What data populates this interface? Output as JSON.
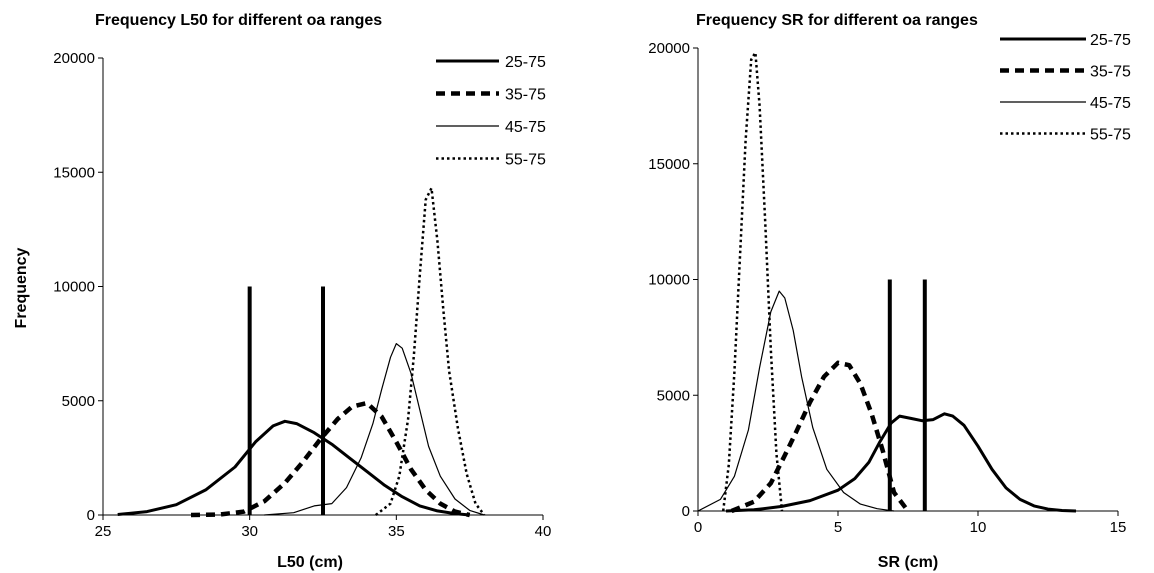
{
  "chart_data": [
    {
      "type": "line",
      "title": "Frequency L50 for different oa ranges",
      "xlabel": "L50 (cm)",
      "ylabel": "Frequency",
      "xlim": [
        25,
        40
      ],
      "ylim": [
        0,
        20000
      ],
      "xticks": [
        25,
        30,
        35,
        40
      ],
      "yticks": [
        0,
        5000,
        10000,
        15000,
        20000
      ],
      "legend_position": "top-right",
      "series": [
        {
          "name": "25-75",
          "style": "thick-solid",
          "x": [
            25.5,
            26.5,
            27.5,
            28.5,
            29.5,
            30.2,
            30.8,
            31.2,
            31.6,
            32.2,
            32.8,
            33.4,
            34,
            34.6,
            35.2,
            35.8,
            36.4,
            37,
            37.5
          ],
          "y": [
            20,
            150,
            450,
            1100,
            2100,
            3200,
            3900,
            4100,
            4000,
            3600,
            3100,
            2500,
            1900,
            1300,
            800,
            400,
            180,
            60,
            0
          ]
        },
        {
          "name": "35-75",
          "style": "thick-dashed",
          "x": [
            28,
            29,
            29.8,
            30.5,
            31.2,
            31.8,
            32.4,
            33,
            33.5,
            34,
            34.5,
            35,
            35.5,
            36,
            36.5,
            37,
            37.5
          ],
          "y": [
            0,
            20,
            150,
            600,
            1400,
            2300,
            3300,
            4200,
            4750,
            4900,
            4300,
            3200,
            2000,
            1100,
            500,
            150,
            0
          ]
        },
        {
          "name": "45-75",
          "style": "thin-solid",
          "x": [
            30.5,
            31.5,
            32.2,
            32.8,
            33.3,
            33.8,
            34.2,
            34.5,
            34.8,
            35,
            35.2,
            35.5,
            35.8,
            36.1,
            36.5,
            37,
            37.5,
            38
          ],
          "y": [
            0,
            100,
            400,
            500,
            1200,
            2500,
            4000,
            5500,
            6900,
            7500,
            7300,
            6200,
            4600,
            3000,
            1700,
            700,
            200,
            0
          ]
        },
        {
          "name": "55-75",
          "style": "thin-dashed",
          "x": [
            34.3,
            34.8,
            35.1,
            35.4,
            35.6,
            35.8,
            36,
            36.2,
            36.4,
            36.6,
            36.8,
            37.1,
            37.4,
            37.7,
            38
          ],
          "y": [
            0,
            500,
            1700,
            4200,
            7000,
            10500,
            13800,
            14300,
            12000,
            9000,
            6300,
            3800,
            1800,
            500,
            0
          ]
        }
      ],
      "vertical_markers": [
        {
          "x": 30,
          "y": 10000
        },
        {
          "x": 32.5,
          "y": 10000
        }
      ]
    },
    {
      "type": "line",
      "title": "Frequency SR for different oa ranges",
      "xlabel": "SR (cm)",
      "ylabel": "",
      "xlim": [
        0,
        15
      ],
      "ylim": [
        0,
        20000
      ],
      "xticks": [
        0,
        5,
        10,
        15
      ],
      "yticks": [
        0,
        5000,
        10000,
        15000,
        20000
      ],
      "legend_position": "top-right",
      "series": [
        {
          "name": "25-75",
          "style": "thick-solid",
          "x": [
            1,
            2,
            3,
            4,
            5,
            5.6,
            6.1,
            6.5,
            6.9,
            7.2,
            7.6,
            8,
            8.4,
            8.8,
            9.1,
            9.5,
            10,
            10.5,
            11,
            11.5,
            12,
            12.5,
            13,
            13.5
          ],
          "y": [
            0,
            50,
            200,
            450,
            900,
            1400,
            2100,
            3000,
            3800,
            4100,
            4000,
            3900,
            3950,
            4200,
            4100,
            3700,
            2800,
            1800,
            1000,
            500,
            220,
            80,
            20,
            0
          ]
        },
        {
          "name": "35-75",
          "style": "thick-dashed",
          "x": [
            1.2,
            2,
            2.6,
            3.1,
            3.5,
            4,
            4.5,
            5,
            5.4,
            5.8,
            6.2,
            6.6,
            7,
            7.5
          ],
          "y": [
            0,
            400,
            1200,
            2400,
            3400,
            4700,
            5800,
            6400,
            6300,
            5500,
            4200,
            2600,
            800,
            0
          ]
        },
        {
          "name": "45-75",
          "style": "thin-solid",
          "x": [
            0,
            0.8,
            1.3,
            1.8,
            2.2,
            2.6,
            2.9,
            3.1,
            3.4,
            3.7,
            4.1,
            4.6,
            5.2,
            5.8,
            6.4,
            7
          ],
          "y": [
            0,
            500,
            1500,
            3500,
            6200,
            8600,
            9500,
            9200,
            7800,
            5800,
            3600,
            1800,
            800,
            300,
            100,
            0
          ]
        },
        {
          "name": "55-75",
          "style": "thin-dashed",
          "x": [
            0.9,
            1.1,
            1.3,
            1.5,
            1.7,
            1.9,
            2.05,
            2.2,
            2.4,
            2.6,
            2.8,
            3
          ],
          "y": [
            0,
            2000,
            6000,
            11000,
            16000,
            19500,
            19800,
            17500,
            12500,
            7000,
            2500,
            0
          ]
        }
      ],
      "vertical_markers": [
        {
          "x": 6.85,
          "y": 10000
        },
        {
          "x": 8.1,
          "y": 10000
        }
      ]
    }
  ]
}
